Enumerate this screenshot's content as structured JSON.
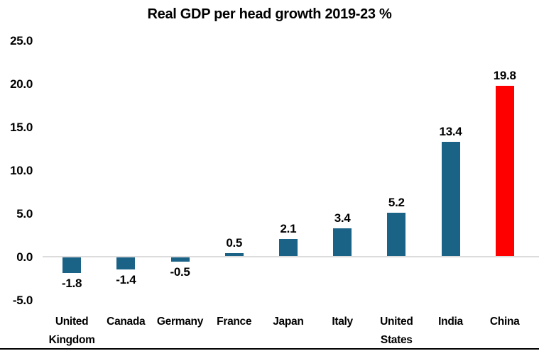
{
  "chart_data": {
    "type": "bar",
    "title": "Real GDP per head growth 2019-23 %",
    "categories": [
      "United Kingdom",
      "Canada",
      "Germany",
      "France",
      "Japan",
      "Italy",
      "United States",
      "India",
      "China"
    ],
    "values": [
      -1.8,
      -1.4,
      -0.5,
      0.5,
      2.1,
      3.4,
      5.2,
      13.4,
      19.8
    ],
    "value_labels": [
      "-1.8",
      "-1.4",
      "-0.5",
      "0.5",
      "2.1",
      "3.4",
      "5.2",
      "13.4",
      "19.8"
    ],
    "xlabel": "",
    "ylabel": "",
    "ylim": [
      -5,
      25
    ],
    "yticks": [
      25,
      20,
      15,
      10,
      5,
      0,
      -5
    ],
    "ytick_labels": [
      "25.0",
      "20.0",
      "15.0",
      "10.0",
      "5.0",
      "0.0",
      "-5.0"
    ],
    "grid": false,
    "legend": false,
    "bar_color": "#1B6287",
    "highlight_color": "#FF0000",
    "highlight_category": "China",
    "zero_line_color": "#DCDCDC",
    "text_color": "#000000",
    "bottom_border_color": "#000000"
  }
}
